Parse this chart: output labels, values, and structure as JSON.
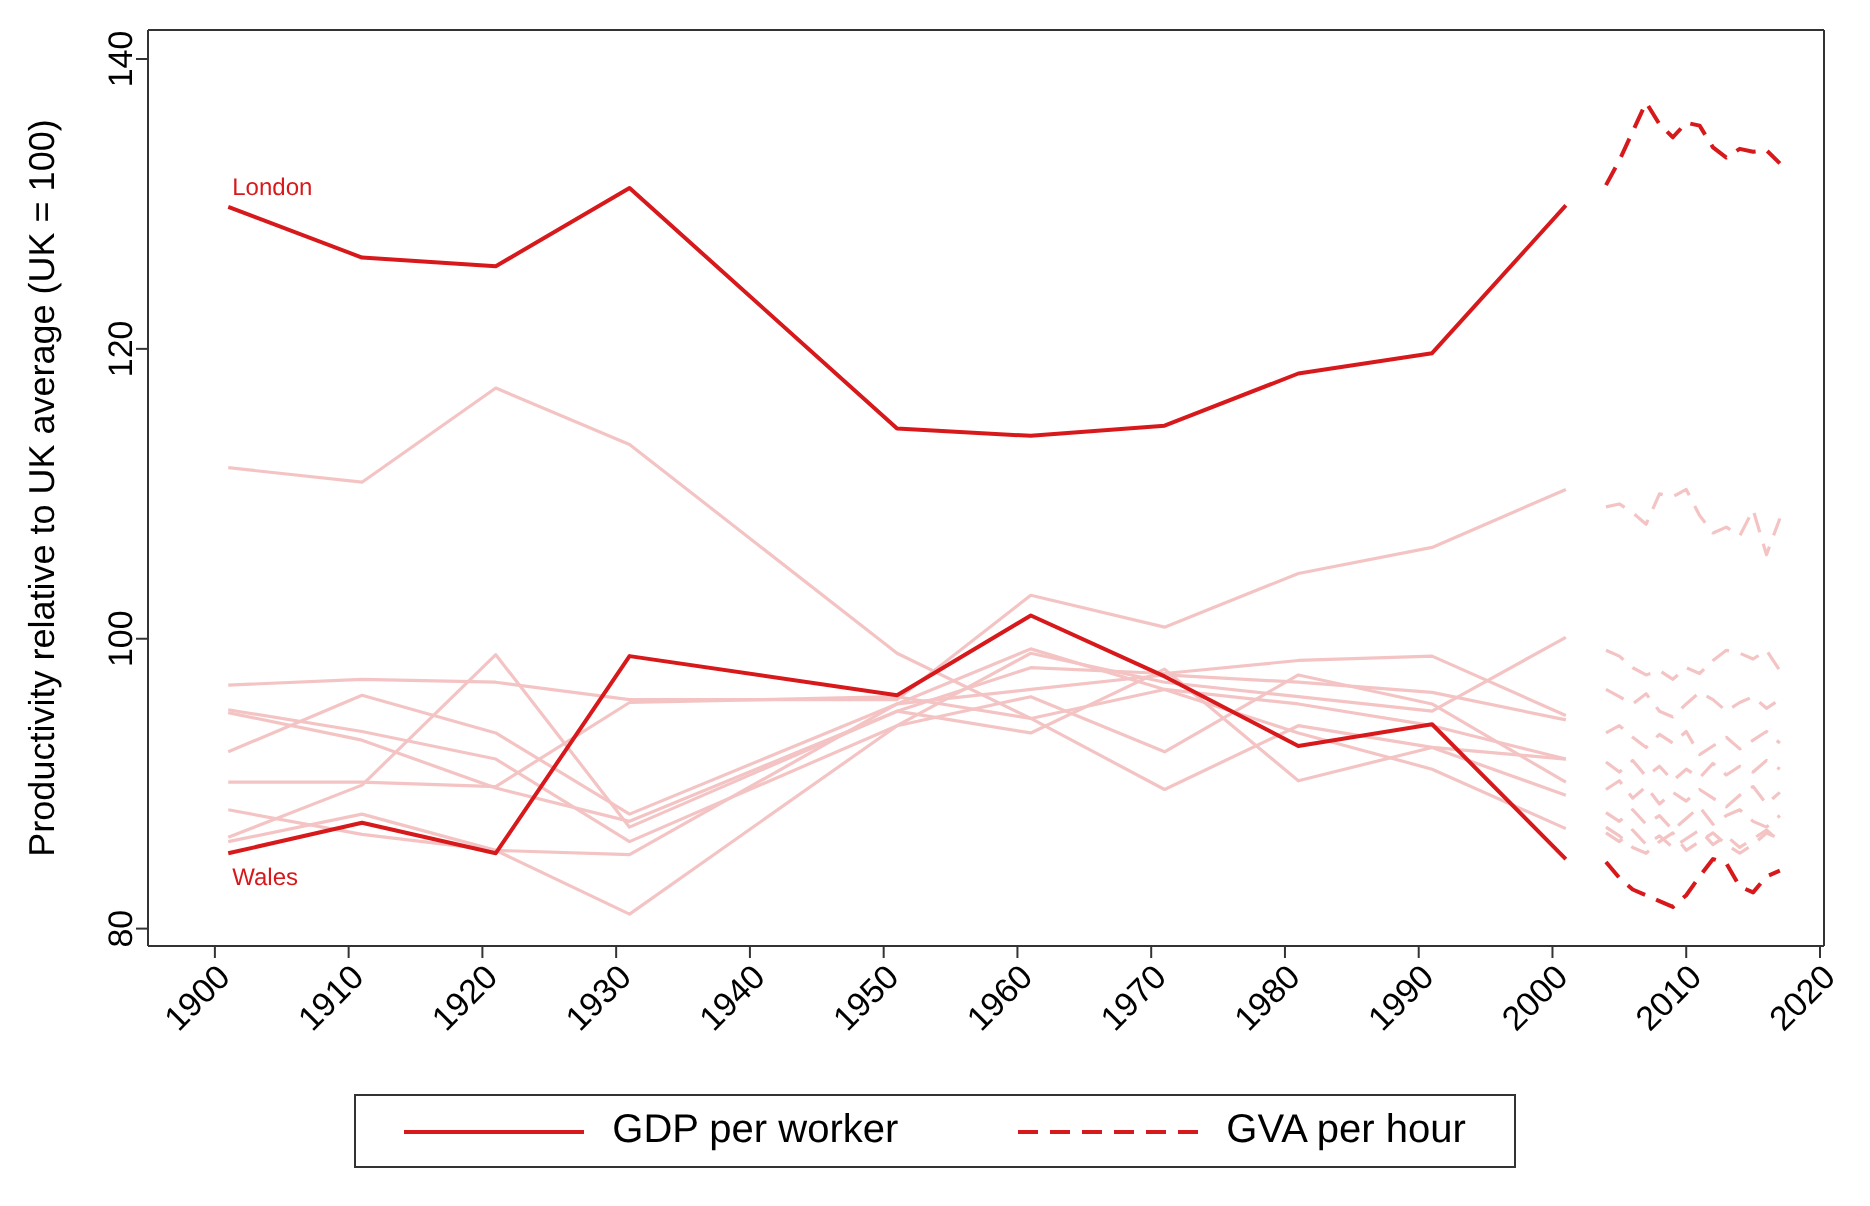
{
  "chart_data": {
    "type": "line",
    "ylabel": "Productivity relative to UK average (UK = 100)",
    "xlim": [
      1895,
      2020.3
    ],
    "xticks": [
      1900,
      1910,
      1920,
      1930,
      1940,
      1950,
      1960,
      1970,
      1980,
      1990,
      2000,
      2010,
      2020
    ],
    "ylim": [
      78.8,
      142
    ],
    "yticks": [
      80,
      100,
      120,
      140
    ],
    "grid": false,
    "legend": "bottom",
    "marker": "none",
    "annotations": [
      {
        "text": "London",
        "x": 1901,
        "y": 129.8
      },
      {
        "text": "Wales",
        "x": 1901,
        "y": 85.2
      }
    ],
    "series": [
      {
        "x": [
          1901,
          1911,
          1921,
          1931,
          1951,
          1961,
          1971,
          1981,
          1991,
          2001
        ],
        "color": "#f4c4c4",
        "line_style": "solid",
        "values": [
          111.8,
          110.8,
          117.3,
          113.4,
          99,
          94.5,
          96.5,
          95.5,
          94,
          91.7
        ]
      },
      {
        "x": [
          1901,
          1911,
          1921,
          1931,
          1951,
          1961,
          1971,
          1981,
          1991,
          2001
        ],
        "color": "#f4c4c4",
        "line_style": "solid",
        "values": [
          96.8,
          97.2,
          97.0,
          95.8,
          95.8,
          103.0,
          100.8,
          104.5,
          106.3,
          110.3
        ]
      },
      {
        "x": [
          1901,
          1911,
          1921,
          1931,
          1951,
          1961,
          1971,
          1981,
          1991,
          2001
        ],
        "color": "#f4c4c4",
        "line_style": "solid",
        "values": [
          95.1,
          93.6,
          91.7,
          86.0,
          94,
          99,
          97,
          96,
          95,
          100.1
        ]
      },
      {
        "x": [
          1901,
          1911,
          1921,
          1931,
          1951,
          1961,
          1971,
          1981,
          1991,
          2001
        ],
        "color": "#f4c4c4",
        "line_style": "solid",
        "values": [
          94.9,
          93.0,
          89.7,
          87.4,
          95,
          98,
          97.6,
          98.5,
          98.8,
          94.7
        ]
      },
      {
        "x": [
          1901,
          1911,
          1921,
          1931,
          1951,
          1961,
          1971,
          1981,
          1991,
          2001
        ],
        "color": "#f4c4c4",
        "line_style": "solid",
        "values": [
          92.2,
          96.1,
          93.5,
          87.9,
          95.5,
          96.5,
          97.5,
          97,
          96.3,
          94.4
        ]
      },
      {
        "x": [
          1901,
          1911,
          1921,
          1931,
          1951,
          1961,
          1971,
          1981,
          1991,
          2001
        ],
        "color": "#f4c4c4",
        "line_style": "solid",
        "values": [
          90.1,
          90.1,
          89.8,
          95.6,
          96,
          94.5,
          89.6,
          94,
          92.5,
          91.7
        ]
      },
      {
        "x": [
          1901,
          1911,
          1921,
          1931,
          1951,
          1961,
          1971,
          1981,
          1991,
          2001
        ],
        "color": "#f4c4c4",
        "line_style": "solid",
        "values": [
          88.2,
          86.5,
          85.4,
          81.0,
          94,
          96,
          92.2,
          97.5,
          95.5,
          90.1
        ]
      },
      {
        "x": [
          1901,
          1911,
          1921,
          1931,
          1951,
          1961,
          1971,
          1981,
          1991,
          2001
        ],
        "color": "#f4c4c4",
        "line_style": "solid",
        "values": [
          86.3,
          89.9,
          98.9,
          87.0,
          95,
          93.5,
          97.9,
          90.2,
          92.5,
          89.2
        ]
      },
      {
        "x": [
          1901,
          1911,
          1921,
          1931,
          1951,
          1961,
          1971,
          1981,
          1991,
          2001
        ],
        "color": "#f4c4c4",
        "line_style": "solid",
        "values": [
          86.0,
          87.9,
          85.4,
          85.1,
          95.5,
          99.3,
          96.5,
          93.5,
          91,
          86.9
        ]
      },
      {
        "x": [
          2004,
          2005,
          2006,
          2007,
          2008,
          2009,
          2010,
          2011,
          2012,
          2013,
          2014,
          2015,
          2016,
          2017
        ],
        "color": "#f4c4c4",
        "line_style": "dashed",
        "values": [
          109.1,
          109.3,
          108.7,
          107.9,
          110,
          109.8,
          110.3,
          108.5,
          107.3,
          107.7,
          107.1,
          108.9,
          105.8,
          108.3
        ]
      },
      {
        "x": [
          2004,
          2005,
          2006,
          2007,
          2008,
          2009,
          2010,
          2011,
          2012,
          2013,
          2014,
          2015,
          2016,
          2017
        ],
        "color": "#f4c4c4",
        "line_style": "dashed",
        "values": [
          99.2,
          98.8,
          98.0,
          97.5,
          97.8,
          97.2,
          98.0,
          97.6,
          98.5,
          99.2,
          99.0,
          98.6,
          99.2,
          97.8
        ]
      },
      {
        "x": [
          2004,
          2005,
          2006,
          2007,
          2008,
          2009,
          2010,
          2011,
          2012,
          2013,
          2014,
          2015,
          2016,
          2017
        ],
        "color": "#f4c4c4",
        "line_style": "dashed",
        "values": [
          96.5,
          96.0,
          95.5,
          96.2,
          95.0,
          94.6,
          95.5,
          96.3,
          95.8,
          95.0,
          95.6,
          96.0,
          95.2,
          95.8
        ]
      },
      {
        "x": [
          2004,
          2005,
          2006,
          2007,
          2008,
          2009,
          2010,
          2011,
          2012,
          2013,
          2014,
          2015,
          2016,
          2017
        ],
        "color": "#f4c4c4",
        "line_style": "dashed",
        "values": [
          93.5,
          94.0,
          93.2,
          92.5,
          93.4,
          92.8,
          93.6,
          92.0,
          92.6,
          93.2,
          92.4,
          93.0,
          93.6,
          92.8
        ]
      },
      {
        "x": [
          2004,
          2005,
          2006,
          2007,
          2008,
          2009,
          2010,
          2011,
          2012,
          2013,
          2014,
          2015,
          2016,
          2017
        ],
        "color": "#f4c4c4",
        "line_style": "dashed",
        "values": [
          91.5,
          90.8,
          91.6,
          90.5,
          91.2,
          90.2,
          91.0,
          90.4,
          91.4,
          90.6,
          91.2,
          90.8,
          91.6,
          91.0
        ]
      },
      {
        "x": [
          2004,
          2005,
          2006,
          2007,
          2008,
          2009,
          2010,
          2011,
          2012,
          2013,
          2014,
          2015,
          2016,
          2017
        ],
        "color": "#f4c4c4",
        "line_style": "dashed",
        "values": [
          89.6,
          90.2,
          89.0,
          89.8,
          88.6,
          89.4,
          88.8,
          89.6,
          89.0,
          88.4,
          89.2,
          89.8,
          88.6,
          89.4
        ]
      },
      {
        "x": [
          2004,
          2005,
          2006,
          2007,
          2008,
          2009,
          2010,
          2011,
          2012,
          2013,
          2014,
          2015,
          2016,
          2017
        ],
        "color": "#f4c4c4",
        "line_style": "dashed",
        "values": [
          88.0,
          87.4,
          88.2,
          87.2,
          87.8,
          86.8,
          87.6,
          88.4,
          87.2,
          87.8,
          88.2,
          87.4,
          87.0,
          87.8
        ]
      },
      {
        "x": [
          2004,
          2005,
          2006,
          2007,
          2008,
          2009,
          2010,
          2011,
          2012,
          2013,
          2014,
          2015,
          2016,
          2017
        ],
        "color": "#f4c4c4",
        "line_style": "dashed",
        "values": [
          86.6,
          86.0,
          86.8,
          85.8,
          86.4,
          85.6,
          86.2,
          86.8,
          85.8,
          86.4,
          85.6,
          86.2,
          86.8,
          86.0
        ]
      },
      {
        "x": [
          2004,
          2005,
          2006,
          2007,
          2008,
          2009,
          2010,
          2011,
          2012,
          2013,
          2014,
          2015,
          2016,
          2017
        ],
        "color": "#f4c4c4",
        "line_style": "dashed",
        "values": [
          87.0,
          86.4,
          85.6,
          85.2,
          86.0,
          86.6,
          85.4,
          86.0,
          86.6,
          85.8,
          85.2,
          85.8,
          86.6,
          86.2
        ]
      },
      {
        "name": "GDP per worker",
        "x": [
          1901,
          1911,
          1921,
          1931,
          1951,
          1961,
          1971,
          1981,
          1991,
          2001
        ],
        "color": "#d7191c",
        "line_style": "solid",
        "values": [
          129.8,
          126.3,
          125.7,
          131.1,
          114.5,
          114.0,
          114.7,
          118.3,
          119.7,
          129.9
        ]
      },
      {
        "x": [
          1901,
          1911,
          1921,
          1931,
          1951,
          1961,
          1971,
          1981,
          1991,
          2001
        ],
        "color": "#d7191c",
        "line_style": "solid",
        "values": [
          85.2,
          87.3,
          85.2,
          98.8,
          96.1,
          101.6,
          97.4,
          92.6,
          94.1,
          84.8
        ]
      },
      {
        "name": "GVA per hour",
        "x": [
          2004,
          2005,
          2006,
          2007,
          2008,
          2009,
          2010,
          2011,
          2012,
          2013,
          2014,
          2015,
          2016,
          2017
        ],
        "color": "#d7191c",
        "line_style": "dashed",
        "values": [
          131.3,
          133.0,
          135.0,
          137.0,
          135.5,
          134.6,
          135.6,
          135.4,
          133.9,
          133.2,
          133.8,
          133.6,
          133.7,
          132.8
        ]
      },
      {
        "x": [
          2004,
          2005,
          2006,
          2007,
          2008,
          2009,
          2010,
          2011,
          2012,
          2013,
          2014,
          2015,
          2016,
          2017
        ],
        "color": "#d7191c",
        "line_style": "dashed",
        "values": [
          84.6,
          83.5,
          82.7,
          82.3,
          81.9,
          81.5,
          82.3,
          83.6,
          84.8,
          84.5,
          82.9,
          82.5,
          83.6,
          84.0
        ]
      }
    ]
  }
}
